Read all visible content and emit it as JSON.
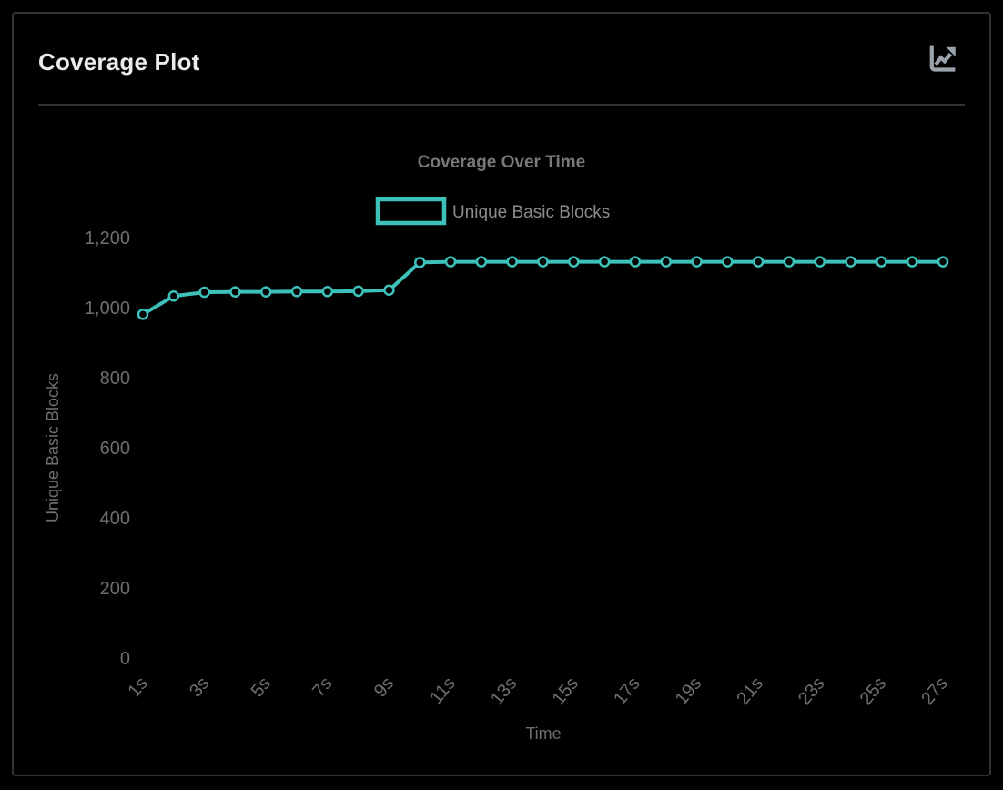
{
  "page": {
    "background": "#000000"
  },
  "card": {
    "title": "Coverage Plot",
    "border_color": "#323232",
    "header_icon": "line-chart-icon",
    "icon_color": "#9aa2ab"
  },
  "chart_data": {
    "type": "line",
    "title": "Coverage Over Time",
    "xlabel": "Time",
    "ylabel": "Unique Basic Blocks",
    "x": [
      "1s",
      "2s",
      "3s",
      "4s",
      "5s",
      "6s",
      "7s",
      "8s",
      "9s",
      "10s",
      "11s",
      "12s",
      "13s",
      "14s",
      "15s",
      "16s",
      "17s",
      "18s",
      "19s",
      "20s",
      "21s",
      "22s",
      "23s",
      "24s",
      "25s",
      "26s",
      "27s"
    ],
    "series": [
      {
        "name": "Unique Basic Blocks",
        "color": "#3cc2bb",
        "values": [
          981,
          1033,
          1044,
          1045,
          1045,
          1046,
          1046,
          1047,
          1050,
          1129,
          1131,
          1131,
          1131,
          1131,
          1131,
          1131,
          1131,
          1131,
          1131,
          1131,
          1131,
          1131,
          1131,
          1131,
          1131,
          1131,
          1131
        ]
      }
    ],
    "ylim": [
      0,
      1200
    ],
    "yticks": [
      0,
      200,
      400,
      600,
      800,
      1000,
      1200
    ],
    "ytick_labels": [
      "0",
      "200",
      "400",
      "600",
      "800",
      "1,000",
      "1,200"
    ],
    "xtick_every": 2,
    "grid": false,
    "legend_position": "top",
    "point_style": "hollow-circle",
    "title_color": "#787878",
    "legend_text_color": "#8c8c8c",
    "tick_color": "#6e6e6e",
    "axis_title_color": "#6e6e6e"
  }
}
